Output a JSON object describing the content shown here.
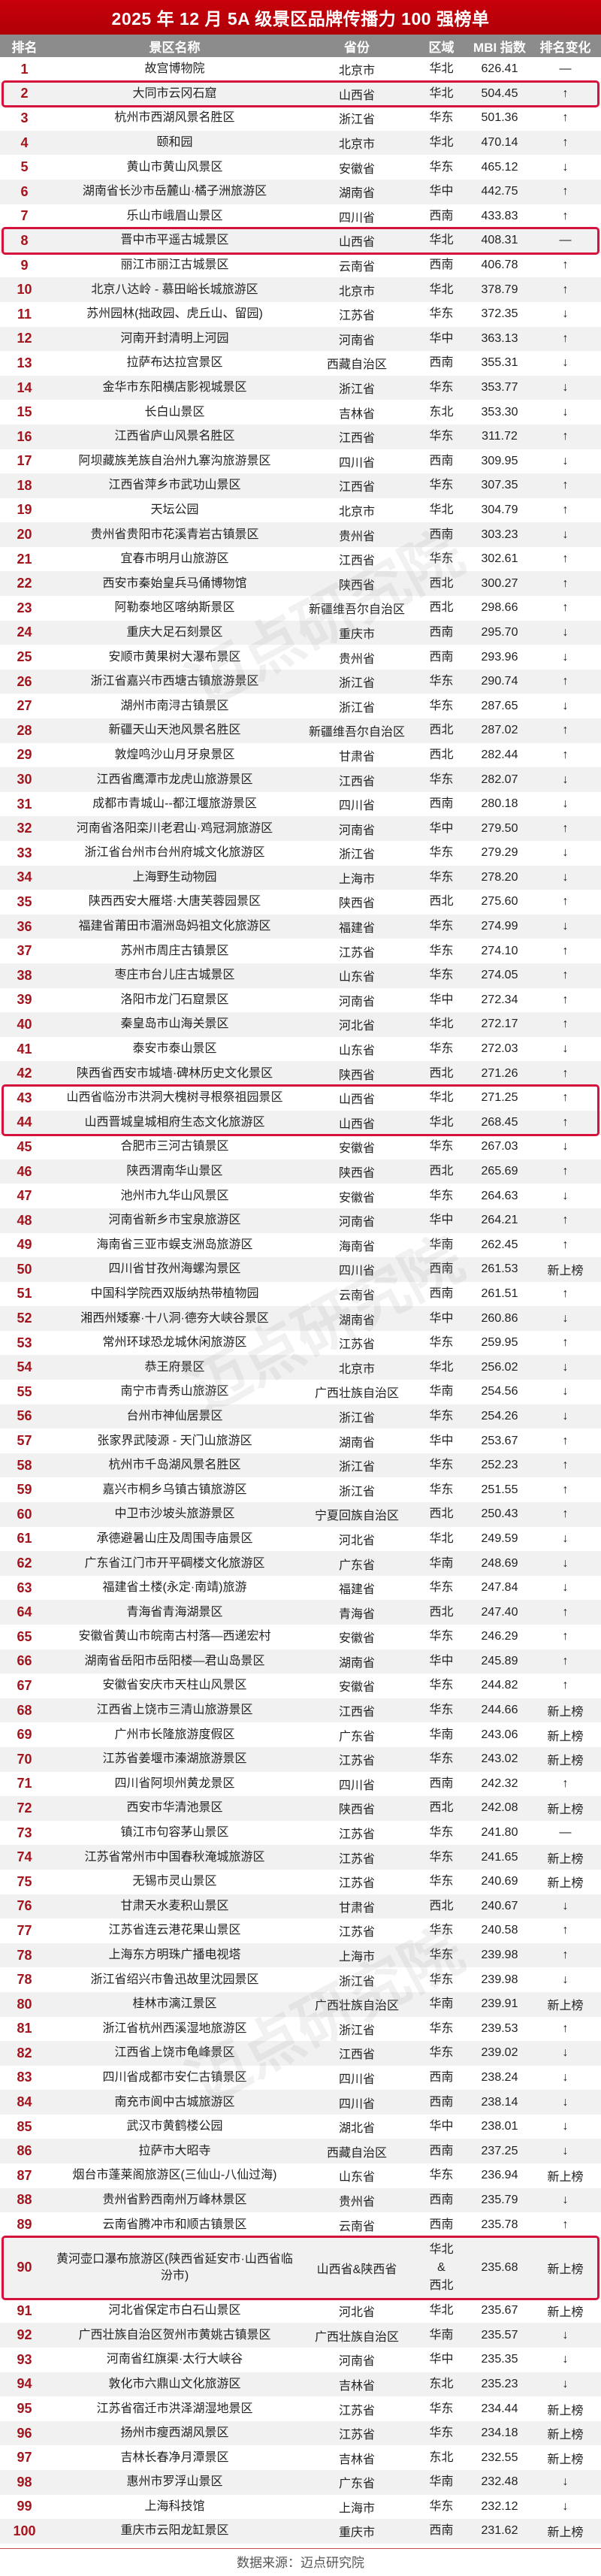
{
  "title": "2025 年 12 月 5A 级景区品牌传播力 100 强榜单",
  "columns": [
    "排名",
    "景区名称",
    "省份",
    "区域",
    "MBI 指数",
    "排名变化"
  ],
  "colors": {
    "title_bg": "#c00000",
    "header_bg": "#8c8c8c",
    "rank_text": "#a3141c",
    "highlight_border": "#d4123c",
    "alt_row": "#f1f1f1"
  },
  "change_legend": {
    "up": "↑",
    "down": "↓",
    "same": "—",
    "new": "新上榜"
  },
  "highlight_groups": [
    [
      1
    ],
    [
      7
    ],
    [
      42,
      43
    ],
    [
      89
    ]
  ],
  "rows": [
    [
      "1",
      "故宫博物院",
      "北京市",
      "华北",
      "626.41",
      "—"
    ],
    [
      "2",
      "大同市云冈石窟",
      "山西省",
      "华北",
      "504.45",
      "↑"
    ],
    [
      "3",
      "杭州市西湖风景名胜区",
      "浙江省",
      "华东",
      "501.36",
      "↑"
    ],
    [
      "4",
      "颐和园",
      "北京市",
      "华北",
      "470.14",
      "↑"
    ],
    [
      "5",
      "黄山市黄山风景区",
      "安徽省",
      "华东",
      "465.12",
      "↓"
    ],
    [
      "6",
      "湖南省长沙市岳麓山·橘子洲旅游区",
      "湖南省",
      "华中",
      "442.75",
      "↑"
    ],
    [
      "7",
      "乐山市峨眉山景区",
      "四川省",
      "西南",
      "433.83",
      "↑"
    ],
    [
      "8",
      "晋中市平遥古城景区",
      "山西省",
      "华北",
      "408.31",
      "—"
    ],
    [
      "9",
      "丽江市丽江古城景区",
      "云南省",
      "西南",
      "406.78",
      "↑"
    ],
    [
      "10",
      "北京八达岭 - 慕田峪长城旅游区",
      "北京市",
      "华北",
      "378.79",
      "↑"
    ],
    [
      "11",
      "苏州园林(拙政园、虎丘山、留园)",
      "江苏省",
      "华东",
      "372.35",
      "↓"
    ],
    [
      "12",
      "河南开封清明上河园",
      "河南省",
      "华中",
      "363.13",
      "↑"
    ],
    [
      "13",
      "拉萨布达拉宫景区",
      "西藏自治区",
      "西南",
      "355.31",
      "↓"
    ],
    [
      "14",
      "金华市东阳横店影视城景区",
      "浙江省",
      "华东",
      "353.77",
      "↓"
    ],
    [
      "15",
      "长白山景区",
      "吉林省",
      "东北",
      "353.30",
      "↓"
    ],
    [
      "16",
      "江西省庐山风景名胜区",
      "江西省",
      "华东",
      "311.72",
      "↑"
    ],
    [
      "17",
      "阿坝藏族羌族自治州九寨沟旅游景区",
      "四川省",
      "西南",
      "309.95",
      "↓"
    ],
    [
      "18",
      "江西省萍乡市武功山景区",
      "江西省",
      "华东",
      "307.35",
      "↑"
    ],
    [
      "19",
      "天坛公园",
      "北京市",
      "华北",
      "304.79",
      "↑"
    ],
    [
      "20",
      "贵州省贵阳市花溪青岩古镇景区",
      "贵州省",
      "西南",
      "303.23",
      "↓"
    ],
    [
      "21",
      "宜春市明月山旅游区",
      "江西省",
      "华东",
      "302.61",
      "↑"
    ],
    [
      "22",
      "西安市秦始皇兵马俑博物馆",
      "陕西省",
      "西北",
      "300.27",
      "↑"
    ],
    [
      "23",
      "阿勒泰地区喀纳斯景区",
      "新疆维吾尔自治区",
      "西北",
      "298.66",
      "↑"
    ],
    [
      "24",
      "重庆大足石刻景区",
      "重庆市",
      "西南",
      "295.70",
      "↓"
    ],
    [
      "25",
      "安顺市黄果树大瀑布景区",
      "贵州省",
      "西南",
      "293.96",
      "↓"
    ],
    [
      "26",
      "浙江省嘉兴市西塘古镇旅游景区",
      "浙江省",
      "华东",
      "290.74",
      "↑"
    ],
    [
      "27",
      "湖州市南浔古镇景区",
      "浙江省",
      "华东",
      "287.65",
      "↓"
    ],
    [
      "28",
      "新疆天山天池风景名胜区",
      "新疆维吾尔自治区",
      "西北",
      "287.02",
      "↑"
    ],
    [
      "29",
      "敦煌鸣沙山月牙泉景区",
      "甘肃省",
      "西北",
      "282.44",
      "↑"
    ],
    [
      "30",
      "江西省鹰潭市龙虎山旅游景区",
      "江西省",
      "华东",
      "282.07",
      "↓"
    ],
    [
      "31",
      "成都市青城山--都江堰旅游景区",
      "四川省",
      "西南",
      "280.18",
      "↓"
    ],
    [
      "32",
      "河南省洛阳栾川老君山·鸡冠洞旅游区",
      "河南省",
      "华中",
      "279.50",
      "↑"
    ],
    [
      "33",
      "浙江省台州市台州府城文化旅游区",
      "浙江省",
      "华东",
      "279.29",
      "↓"
    ],
    [
      "34",
      "上海野生动物园",
      "上海市",
      "华东",
      "278.20",
      "↓"
    ],
    [
      "35",
      "陕西西安大雁塔·大唐芙蓉园景区",
      "陕西省",
      "西北",
      "275.60",
      "↑"
    ],
    [
      "36",
      "福建省莆田市湄洲岛妈祖文化旅游区",
      "福建省",
      "华东",
      "274.99",
      "↓"
    ],
    [
      "37",
      "苏州市周庄古镇景区",
      "江苏省",
      "华东",
      "274.10",
      "↑"
    ],
    [
      "38",
      "枣庄市台儿庄古城景区",
      "山东省",
      "华东",
      "274.05",
      "↑"
    ],
    [
      "39",
      "洛阳市龙门石窟景区",
      "河南省",
      "华中",
      "272.34",
      "↑"
    ],
    [
      "40",
      "秦皇岛市山海关景区",
      "河北省",
      "华北",
      "272.17",
      "↑"
    ],
    [
      "41",
      "泰安市泰山景区",
      "山东省",
      "华东",
      "272.03",
      "↓"
    ],
    [
      "42",
      "陕西省西安市城墙·碑林历史文化景区",
      "陕西省",
      "西北",
      "271.26",
      "↑"
    ],
    [
      "43",
      "山西省临汾市洪洞大槐树寻根祭祖园景区",
      "山西省",
      "华北",
      "271.25",
      "↑"
    ],
    [
      "44",
      "山西晋城皇城相府生态文化旅游区",
      "山西省",
      "华北",
      "268.45",
      "↑"
    ],
    [
      "45",
      "合肥市三河古镇景区",
      "安徽省",
      "华东",
      "267.03",
      "↓"
    ],
    [
      "46",
      "陕西渭南华山景区",
      "陕西省",
      "西北",
      "265.69",
      "↑"
    ],
    [
      "47",
      "池州市九华山风景区",
      "安徽省",
      "华东",
      "264.63",
      "↓"
    ],
    [
      "48",
      "河南省新乡市宝泉旅游区",
      "河南省",
      "华中",
      "264.21",
      "↑"
    ],
    [
      "49",
      "海南省三亚市蜈支洲岛旅游区",
      "海南省",
      "华南",
      "262.45",
      "↑"
    ],
    [
      "50",
      "四川省甘孜州海螺沟景区",
      "四川省",
      "西南",
      "261.53",
      "新上榜"
    ],
    [
      "51",
      "中国科学院西双版纳热带植物园",
      "云南省",
      "西南",
      "261.51",
      "↑"
    ],
    [
      "52",
      "湘西州矮寨·十八洞·德夯大峡谷景区",
      "湖南省",
      "华中",
      "260.86",
      "↓"
    ],
    [
      "53",
      "常州环球恐龙城休闲旅游区",
      "江苏省",
      "华东",
      "259.95",
      "↑"
    ],
    [
      "54",
      "恭王府景区",
      "北京市",
      "华北",
      "256.02",
      "↓"
    ],
    [
      "55",
      "南宁市青秀山旅游区",
      "广西壮族自治区",
      "华南",
      "254.56",
      "↓"
    ],
    [
      "56",
      "台州市神仙居景区",
      "浙江省",
      "华东",
      "254.26",
      "↓"
    ],
    [
      "57",
      "张家界武陵源 - 天门山旅游区",
      "湖南省",
      "华中",
      "253.67",
      "↑"
    ],
    [
      "58",
      "杭州市千岛湖风景名胜区",
      "浙江省",
      "华东",
      "252.23",
      "↑"
    ],
    [
      "59",
      "嘉兴市桐乡乌镇古镇旅游区",
      "浙江省",
      "华东",
      "251.55",
      "↑"
    ],
    [
      "60",
      "中卫市沙坡头旅游景区",
      "宁夏回族自治区",
      "西北",
      "250.43",
      "↑"
    ],
    [
      "61",
      "承德避暑山庄及周围寺庙景区",
      "河北省",
      "华北",
      "249.59",
      "↓"
    ],
    [
      "62",
      "广东省江门市开平碉楼文化旅游区",
      "广东省",
      "华南",
      "248.69",
      "↓"
    ],
    [
      "63",
      "福建省土楼(永定·南靖)旅游",
      "福建省",
      "华东",
      "247.84",
      "↓"
    ],
    [
      "64",
      "青海省青海湖景区",
      "青海省",
      "西北",
      "247.40",
      "↑"
    ],
    [
      "65",
      "安徽省黄山市皖南古村落—西递宏村",
      "安徽省",
      "华东",
      "246.29",
      "↑"
    ],
    [
      "66",
      "湖南省岳阳市岳阳楼—君山岛景区",
      "湖南省",
      "华中",
      "245.89",
      "↑"
    ],
    [
      "67",
      "安徽省安庆市天柱山风景区",
      "安徽省",
      "华东",
      "244.82",
      "↑"
    ],
    [
      "68",
      "江西省上饶市三清山旅游景区",
      "江西省",
      "华东",
      "244.66",
      "新上榜"
    ],
    [
      "69",
      "广州市长隆旅游度假区",
      "广东省",
      "华南",
      "243.06",
      "新上榜"
    ],
    [
      "70",
      "江苏省姜堰市溱湖旅游景区",
      "江苏省",
      "华东",
      "243.02",
      "新上榜"
    ],
    [
      "71",
      "四川省阿坝州黄龙景区",
      "四川省",
      "西南",
      "242.32",
      "↑"
    ],
    [
      "72",
      "西安市华清池景区",
      "陕西省",
      "西北",
      "242.08",
      "新上榜"
    ],
    [
      "73",
      "镇江市句容茅山景区",
      "江苏省",
      "华东",
      "241.80",
      "—"
    ],
    [
      "74",
      "江苏省常州市中国春秋淹城旅游区",
      "江苏省",
      "华东",
      "241.65",
      "新上榜"
    ],
    [
      "75",
      "无锡市灵山景区",
      "江苏省",
      "华东",
      "240.69",
      "新上榜"
    ],
    [
      "76",
      "甘肃天水麦积山景区",
      "甘肃省",
      "西北",
      "240.67",
      "↓"
    ],
    [
      "77",
      "江苏省连云港花果山景区",
      "江苏省",
      "华东",
      "240.58",
      "↑"
    ],
    [
      "78",
      "上海东方明珠广播电视塔",
      "上海市",
      "华东",
      "239.98",
      "↑"
    ],
    [
      "78",
      "浙江省绍兴市鲁迅故里沈园景区",
      "浙江省",
      "华东",
      "239.98",
      "↓"
    ],
    [
      "80",
      "桂林市漓江景区",
      "广西壮族自治区",
      "华南",
      "239.91",
      "新上榜"
    ],
    [
      "81",
      "浙江省杭州西溪湿地旅游区",
      "浙江省",
      "华东",
      "239.53",
      "↑"
    ],
    [
      "82",
      "江西省上饶市龟峰景区",
      "江西省",
      "华东",
      "239.02",
      "↓"
    ],
    [
      "83",
      "四川省成都市安仁古镇景区",
      "四川省",
      "西南",
      "238.24",
      "↓"
    ],
    [
      "84",
      "南充市阆中古城旅游区",
      "四川省",
      "西南",
      "238.14",
      "↓"
    ],
    [
      "85",
      "武汉市黄鹤楼公园",
      "湖北省",
      "华中",
      "238.01",
      "↓"
    ],
    [
      "86",
      "拉萨市大昭寺",
      "西藏自治区",
      "西南",
      "237.25",
      "↓"
    ],
    [
      "87",
      "烟台市蓬莱阁旅游区(三仙山-八仙过海)",
      "山东省",
      "华东",
      "236.94",
      "新上榜"
    ],
    [
      "88",
      "贵州省黔西南州万峰林景区",
      "贵州省",
      "西南",
      "235.79",
      "↓"
    ],
    [
      "89",
      "云南省腾冲市和顺古镇景区",
      "云南省",
      "西南",
      "235.78",
      "↑"
    ],
    [
      "90",
      "黄河壶口瀑布旅游区(陕西省延安市·山西省临汾市)",
      "山西省&陕西省",
      "华北\n&\n西北",
      "235.68",
      "新上榜"
    ],
    [
      "91",
      "河北省保定市白石山景区",
      "河北省",
      "华北",
      "235.67",
      "新上榜"
    ],
    [
      "92",
      "广西壮族自治区贺州市黄姚古镇景区",
      "广西壮族自治区",
      "华南",
      "235.57",
      "↓"
    ],
    [
      "93",
      "河南省红旗渠·太行大峡谷",
      "河南省",
      "华中",
      "235.35",
      "↓"
    ],
    [
      "94",
      "敦化市六鼎山文化旅游区",
      "吉林省",
      "东北",
      "235.23",
      "↓"
    ],
    [
      "95",
      "江苏省宿迁市洪泽湖湿地景区",
      "江苏省",
      "华东",
      "234.44",
      "新上榜"
    ],
    [
      "96",
      "扬州市瘦西湖风景区",
      "江苏省",
      "华东",
      "234.18",
      "新上榜"
    ],
    [
      "97",
      "吉林长春净月潭景区",
      "吉林省",
      "东北",
      "232.55",
      "新上榜"
    ],
    [
      "98",
      "惠州市罗浮山景区",
      "广东省",
      "华南",
      "232.48",
      "↓"
    ],
    [
      "99",
      "上海科技馆",
      "上海市",
      "华东",
      "232.12",
      "↓"
    ],
    [
      "100",
      "重庆市云阳龙缸景区",
      "重庆市",
      "西南",
      "231.62",
      "新上榜"
    ]
  ],
  "footer": "数据来源：迈点研究院",
  "watermark": "迈点研究院"
}
